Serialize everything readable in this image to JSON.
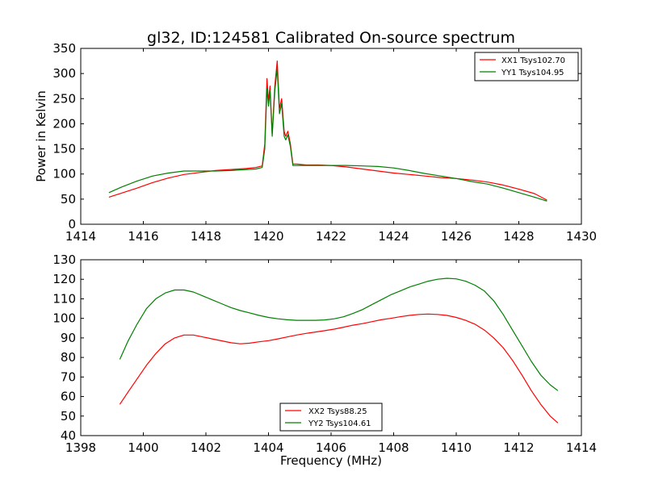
{
  "chart_data": [
    {
      "type": "line",
      "title": "gl32, ID:124581 Calibrated On-source spectrum",
      "xlabel": "",
      "ylabel": "Power in Kelvin",
      "xlim": [
        1414,
        1430
      ],
      "ylim": [
        0,
        350
      ],
      "xticks": [
        1414,
        1416,
        1418,
        1420,
        1422,
        1424,
        1426,
        1428,
        1430
      ],
      "yticks": [
        0,
        50,
        100,
        150,
        200,
        250,
        300,
        350
      ],
      "legend_position": "top-right",
      "grid": false,
      "series": [
        {
          "name": "XX1 Tsys102.70",
          "color": "#ff0000",
          "x": [
            1414.9,
            1415.3,
            1415.8,
            1416.3,
            1416.8,
            1417.3,
            1417.8,
            1418.3,
            1418.8,
            1419.3,
            1419.6,
            1419.8,
            1419.88,
            1419.95,
            1420.0,
            1420.05,
            1420.12,
            1420.2,
            1420.28,
            1420.35,
            1420.42,
            1420.5,
            1420.55,
            1420.62,
            1420.7,
            1420.78,
            1420.9,
            1421.2,
            1421.6,
            1422.0,
            1422.5,
            1423.0,
            1423.5,
            1424.0,
            1424.5,
            1425.0,
            1425.5,
            1426.0,
            1426.5,
            1427.0,
            1427.5,
            1428.0,
            1428.5,
            1428.9
          ],
          "values": [
            54,
            62,
            72,
            83,
            92,
            99,
            103,
            107,
            109,
            111,
            113,
            116,
            160,
            290,
            245,
            275,
            180,
            275,
            325,
            230,
            250,
            185,
            175,
            185,
            160,
            120,
            120,
            118,
            118,
            117,
            114,
            110,
            106,
            102,
            99,
            96,
            93,
            91,
            88,
            84,
            78,
            70,
            61,
            48
          ]
        },
        {
          "name": "YY1 Tsys104.95",
          "color": "#008000",
          "x": [
            1414.9,
            1415.3,
            1415.8,
            1416.3,
            1416.8,
            1417.3,
            1417.8,
            1418.3,
            1418.8,
            1419.3,
            1419.6,
            1419.8,
            1419.88,
            1419.95,
            1420.0,
            1420.05,
            1420.12,
            1420.2,
            1420.28,
            1420.35,
            1420.42,
            1420.5,
            1420.55,
            1420.62,
            1420.7,
            1420.78,
            1420.9,
            1421.2,
            1421.6,
            1422.0,
            1422.5,
            1423.0,
            1423.5,
            1424.0,
            1424.5,
            1425.0,
            1425.5,
            1426.0,
            1426.5,
            1427.0,
            1427.5,
            1428.0,
            1428.5,
            1428.9
          ],
          "values": [
            63,
            74,
            86,
            96,
            102,
            106,
            106,
            106,
            107,
            109,
            110,
            113,
            150,
            270,
            235,
            265,
            175,
            265,
            310,
            220,
            240,
            175,
            168,
            178,
            155,
            117,
            117,
            117,
            117,
            117,
            117,
            116,
            115,
            112,
            107,
            101,
            96,
            91,
            85,
            80,
            72,
            63,
            54,
            46
          ]
        }
      ]
    },
    {
      "type": "line",
      "title": "",
      "xlabel": "Frequency (MHz)",
      "ylabel": "",
      "xlim": [
        1398,
        1414
      ],
      "ylim": [
        40,
        130
      ],
      "xticks": [
        1398,
        1400,
        1402,
        1404,
        1406,
        1408,
        1410,
        1412,
        1414
      ],
      "yticks": [
        40,
        50,
        60,
        70,
        80,
        90,
        100,
        110,
        120,
        130
      ],
      "legend_position": "bottom-center",
      "grid": false,
      "series": [
        {
          "name": "XX2 Tsys88.25",
          "color": "#ff0000",
          "x": [
            1399.25,
            1399.5,
            1399.8,
            1400.1,
            1400.4,
            1400.7,
            1401.0,
            1401.3,
            1401.6,
            1401.9,
            1402.2,
            1402.5,
            1402.8,
            1403.1,
            1403.4,
            1403.7,
            1404.0,
            1404.3,
            1404.6,
            1404.9,
            1405.2,
            1405.5,
            1405.8,
            1406.1,
            1406.4,
            1406.7,
            1407.0,
            1407.3,
            1407.6,
            1407.9,
            1408.2,
            1408.5,
            1408.8,
            1409.1,
            1409.4,
            1409.7,
            1410.0,
            1410.3,
            1410.6,
            1410.9,
            1411.2,
            1411.5,
            1411.8,
            1412.1,
            1412.4,
            1412.7,
            1413.0,
            1413.25
          ],
          "values": [
            56,
            62,
            69,
            76,
            82,
            87,
            90,
            91.5,
            91.5,
            90.5,
            89.5,
            88.5,
            87.5,
            87,
            87.3,
            88,
            88.6,
            89.5,
            90.5,
            91.5,
            92.3,
            93,
            93.7,
            94.5,
            95.5,
            96.5,
            97.3,
            98.3,
            99.3,
            100,
            100.8,
            101.5,
            102,
            102.2,
            102,
            101.5,
            100.5,
            99,
            97,
            94,
            90,
            85,
            78.5,
            71,
            63,
            56,
            50,
            46.5
          ]
        },
        {
          "name": "YY2 Tsys104.61",
          "color": "#008000",
          "x": [
            1399.25,
            1399.5,
            1399.8,
            1400.1,
            1400.4,
            1400.7,
            1401.0,
            1401.3,
            1401.6,
            1401.9,
            1402.2,
            1402.5,
            1402.8,
            1403.1,
            1403.4,
            1403.7,
            1404.0,
            1404.3,
            1404.6,
            1404.9,
            1405.2,
            1405.5,
            1405.8,
            1406.1,
            1406.4,
            1406.7,
            1407.0,
            1407.3,
            1407.6,
            1407.9,
            1408.2,
            1408.5,
            1408.8,
            1409.1,
            1409.4,
            1409.7,
            1410.0,
            1410.3,
            1410.6,
            1410.9,
            1411.2,
            1411.5,
            1411.8,
            1412.1,
            1412.4,
            1412.7,
            1413.0,
            1413.25
          ],
          "values": [
            79,
            88,
            97,
            105,
            110,
            113,
            114.5,
            114.5,
            113.5,
            111.5,
            109.5,
            107.5,
            105.5,
            104,
            102.8,
            101.5,
            100.5,
            99.8,
            99.3,
            99,
            99,
            99,
            99.2,
            99.8,
            100.8,
            102.5,
            104.5,
            107,
            109.5,
            112,
            114,
            116,
            117.5,
            119,
            120,
            120.5,
            120.2,
            119,
            117,
            114,
            109,
            102,
            94,
            86,
            78,
            71,
            66,
            63
          ]
        }
      ]
    }
  ]
}
